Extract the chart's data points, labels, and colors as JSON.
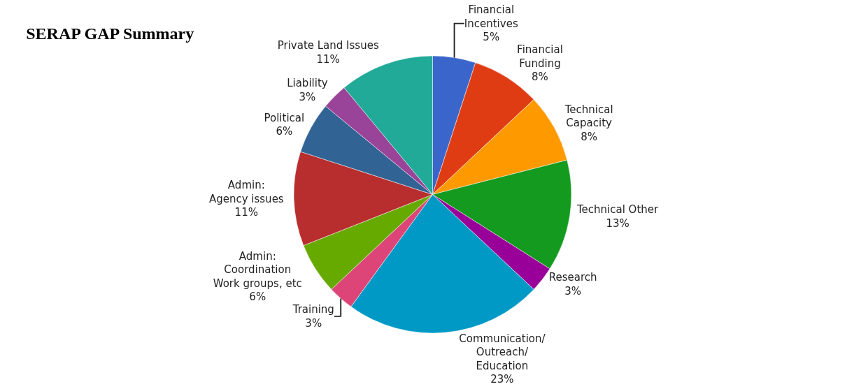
{
  "chart_data": {
    "type": "pie",
    "title": "SERAP GAP Summary",
    "categories": [
      "Financial\nIncentives",
      "Financial\nFunding",
      "Technical\nCapacity",
      "Technical Other",
      "Research",
      "Communication/\nOutreach/\nEducation",
      "Training",
      "Admin:\nCoordination\nWork groups, etc",
      "Admin:\nAgency issues",
      "Political",
      "Liability",
      "Private Land Issues"
    ],
    "values": [
      5,
      8,
      8,
      13,
      3,
      23,
      3,
      6,
      11,
      6,
      3,
      11
    ],
    "value_labels": [
      "5%",
      "8%",
      "8%",
      "13%",
      "3%",
      "23%",
      "3%",
      "6%",
      "11%",
      "6%",
      "3%",
      "11%"
    ],
    "colors": [
      "#3a66cc",
      "#e03c14",
      "#ff9900",
      "#149a1e",
      "#990099",
      "#0099c6",
      "#dd4477",
      "#66aa00",
      "#b82e2e",
      "#316395",
      "#994499",
      "#22aa99"
    ],
    "legend": false
  }
}
